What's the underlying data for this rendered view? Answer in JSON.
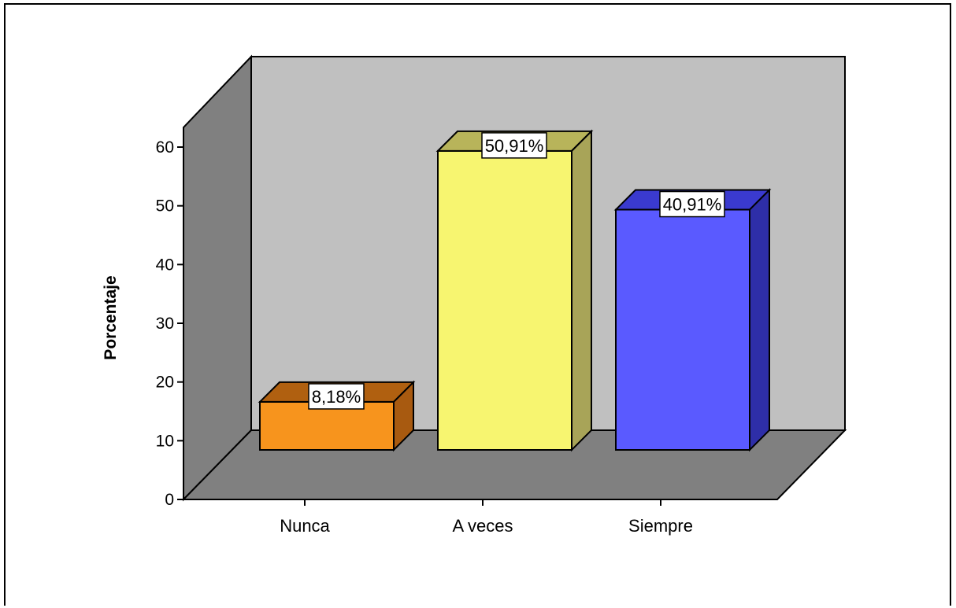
{
  "chart_data": {
    "type": "bar",
    "style": "3d",
    "categories": [
      "Nunca",
      "A veces",
      "Siempre"
    ],
    "values": [
      8.18,
      50.91,
      40.91
    ],
    "value_labels": [
      "8,18%",
      "50,91%",
      "40,91%"
    ],
    "ylabel": "Porcentaje",
    "ylim": [
      0,
      60
    ],
    "yticks": [
      0,
      10,
      20,
      30,
      40,
      50,
      60
    ],
    "colors": {
      "bars": [
        "#F7941D",
        "#F7F570",
        "#5A5AFF"
      ],
      "bar_tops": [
        "#B06010",
        "#B8B45A",
        "#3A3ACF"
      ],
      "bar_sides": [
        "#A85A10",
        "#A8A458",
        "#2E2EA8"
      ],
      "back_wall": "#C0C0C0",
      "side_wall": "#808080",
      "floor": "#808080"
    }
  }
}
